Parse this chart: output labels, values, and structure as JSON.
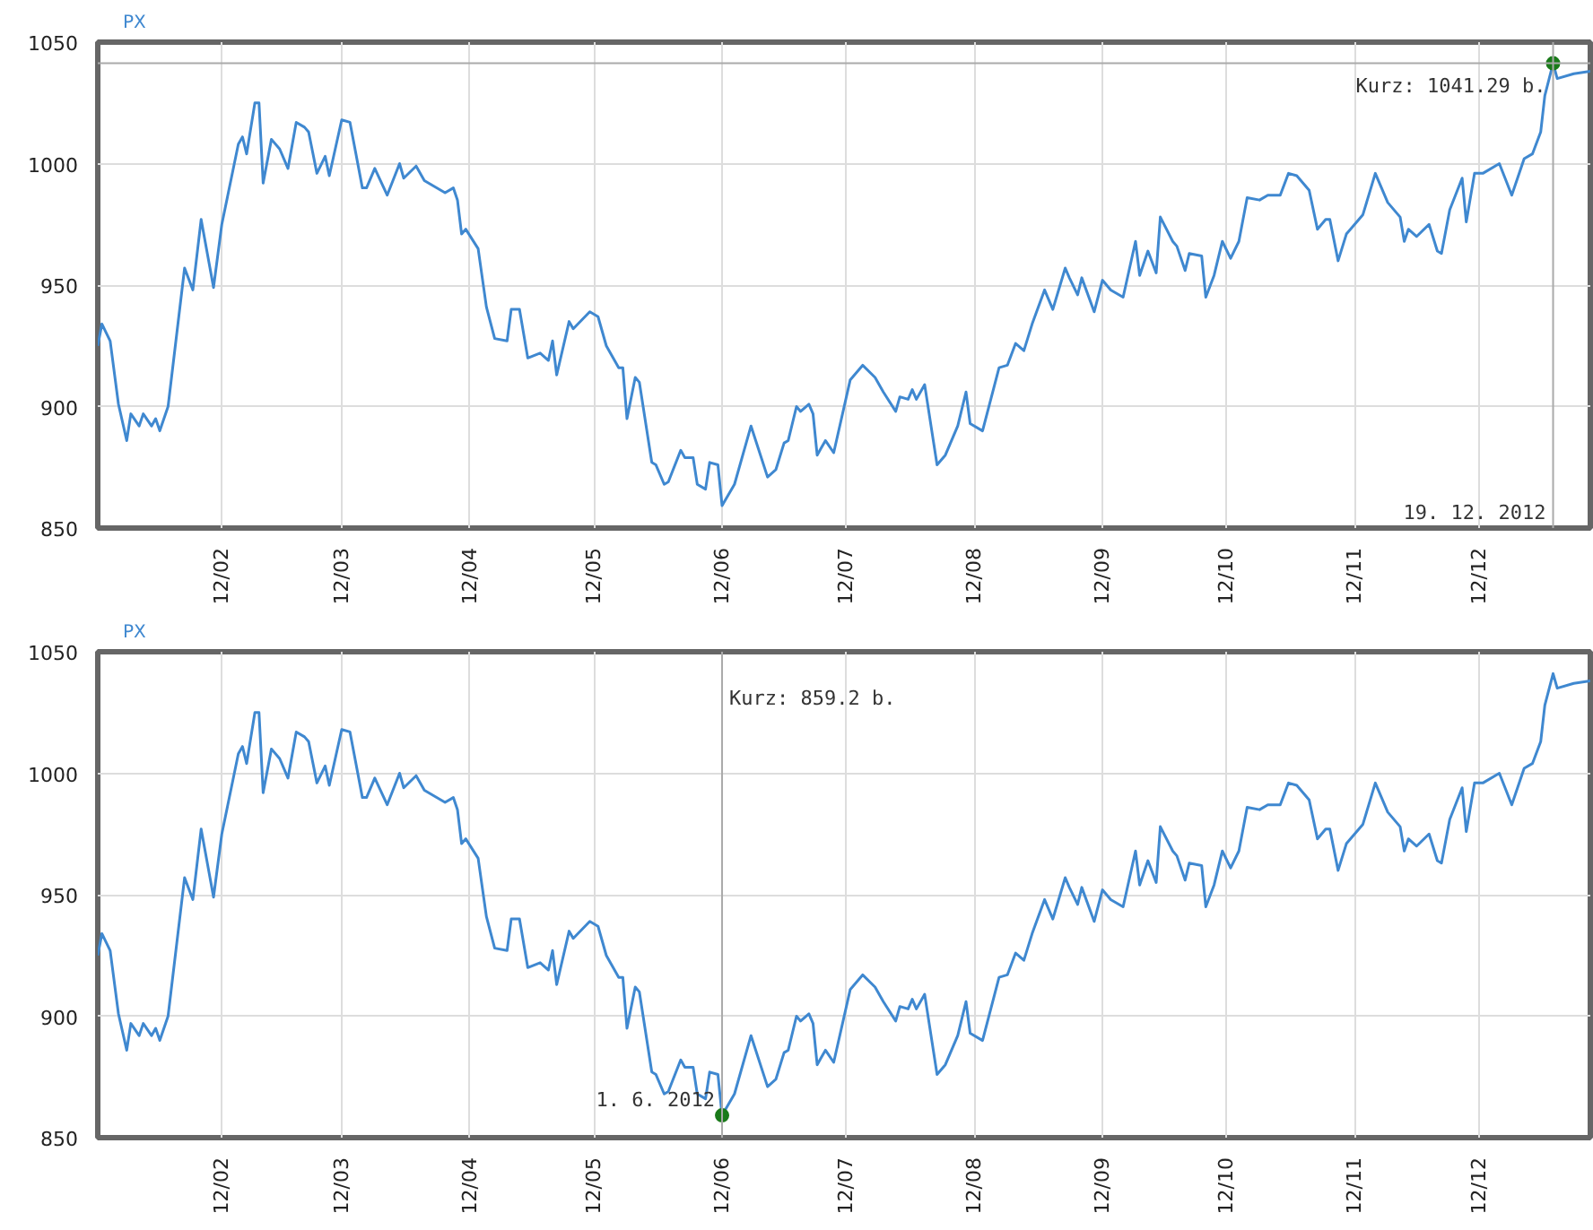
{
  "chart_data": [
    {
      "type": "line",
      "title": "PX",
      "x": [
        "2012-01-02",
        "2012-01-03",
        "2012-01-05",
        "2012-01-07",
        "2012-01-09",
        "2012-01-10",
        "2012-01-12",
        "2012-01-13",
        "2012-01-15",
        "2012-01-16",
        "2012-01-17",
        "2012-01-19",
        "2012-01-23",
        "2012-01-25",
        "2012-01-27",
        "2012-01-30",
        "2012-02-01",
        "2012-02-05",
        "2012-02-06",
        "2012-02-07",
        "2012-02-09",
        "2012-02-10",
        "2012-02-11",
        "2012-02-13",
        "2012-02-15",
        "2012-02-17",
        "2012-02-19",
        "2012-02-21",
        "2012-02-22",
        "2012-02-24",
        "2012-02-26",
        "2012-02-27",
        "2012-03-01",
        "2012-03-03",
        "2012-03-06",
        "2012-03-07",
        "2012-03-09",
        "2012-03-12",
        "2012-03-15",
        "2012-03-16",
        "2012-03-19",
        "2012-03-21",
        "2012-03-26",
        "2012-03-28",
        "2012-03-29",
        "2012-03-30",
        "2012-03-31",
        "2012-04-03",
        "2012-04-05",
        "2012-04-07",
        "2012-04-10",
        "2012-04-11",
        "2012-04-13",
        "2012-04-15",
        "2012-04-18",
        "2012-04-20",
        "2012-04-21",
        "2012-04-22",
        "2012-04-25",
        "2012-04-26",
        "2012-04-30",
        "2012-05-02",
        "2012-05-04",
        "2012-05-07",
        "2012-05-08",
        "2012-05-09",
        "2012-05-11",
        "2012-05-12",
        "2012-05-15",
        "2012-05-16",
        "2012-05-18",
        "2012-05-19",
        "2012-05-22",
        "2012-05-23",
        "2012-05-25",
        "2012-05-26",
        "2012-05-28",
        "2012-05-29",
        "2012-05-31",
        "2012-06-01",
        "2012-06-04",
        "2012-06-08",
        "2012-06-12",
        "2012-06-14",
        "2012-06-16",
        "2012-06-17",
        "2012-06-19",
        "2012-06-20",
        "2012-06-22",
        "2012-06-23",
        "2012-06-24",
        "2012-06-25",
        "2012-06-26",
        "2012-06-28",
        "2012-07-02",
        "2012-07-05",
        "2012-07-08",
        "2012-07-10",
        "2012-07-13",
        "2012-07-14",
        "2012-07-16",
        "2012-07-17",
        "2012-07-18",
        "2012-07-20",
        "2012-07-23",
        "2012-07-25",
        "2012-07-28",
        "2012-07-30",
        "2012-07-31",
        "2012-08-03",
        "2012-08-07",
        "2012-08-09",
        "2012-08-11",
        "2012-08-13",
        "2012-08-15",
        "2012-08-18",
        "2012-08-20",
        "2012-08-23",
        "2012-08-24",
        "2012-08-26",
        "2012-08-27",
        "2012-08-30",
        "2012-09-01",
        "2012-09-03",
        "2012-09-06",
        "2012-09-09",
        "2012-09-10",
        "2012-09-12",
        "2012-09-14",
        "2012-09-15",
        "2012-09-18",
        "2012-09-19",
        "2012-09-21",
        "2012-09-22",
        "2012-09-25",
        "2012-09-26",
        "2012-09-28",
        "2012-09-30",
        "2012-10-02",
        "2012-10-04",
        "2012-10-06",
        "2012-10-09",
        "2012-10-11",
        "2012-10-14",
        "2012-10-16",
        "2012-10-18",
        "2012-10-21",
        "2012-10-23",
        "2012-10-25",
        "2012-10-26",
        "2012-10-28",
        "2012-10-30",
        "2012-11-03",
        "2012-11-06",
        "2012-11-09",
        "2012-11-12",
        "2012-11-13",
        "2012-11-14",
        "2012-11-16",
        "2012-11-19",
        "2012-11-21",
        "2012-11-22",
        "2012-11-24",
        "2012-11-27",
        "2012-11-28",
        "2012-11-30",
        "2012-12-02",
        "2012-12-06",
        "2012-12-09",
        "2012-12-12",
        "2012-12-14",
        "2012-12-16",
        "2012-12-17",
        "2012-12-19",
        "2012-12-20",
        "2012-12-24",
        "2012-12-28"
      ],
      "series": [
        {
          "color": "#3f88d0",
          "values": [
            925,
            934,
            927,
            901,
            886,
            897,
            892,
            897,
            892,
            895,
            890,
            900,
            957,
            948,
            977,
            949,
            975,
            1008,
            1011,
            1004,
            1025,
            1025,
            992,
            1010,
            1006,
            998,
            1017,
            1015,
            1013,
            996,
            1003,
            995,
            1018,
            1017,
            990,
            990,
            998,
            987,
            1000,
            994,
            999,
            993,
            988,
            990,
            985,
            971,
            973,
            965,
            941,
            928,
            927,
            940,
            940,
            920,
            922,
            919,
            927,
            913,
            935,
            932,
            939,
            937,
            925,
            916,
            916,
            895,
            912,
            910,
            877,
            876,
            868,
            869,
            882,
            879,
            879,
            868,
            866,
            877,
            876,
            859.2,
            868,
            892,
            871,
            874,
            885,
            886,
            900,
            898,
            901,
            897,
            880,
            883,
            886,
            881,
            911,
            917,
            912,
            906,
            898,
            904,
            903,
            907,
            903,
            909,
            876,
            880,
            892,
            906,
            893,
            890,
            916,
            917,
            926,
            923,
            934,
            948,
            940,
            957,
            953,
            946,
            953,
            939,
            952,
            948,
            945,
            968,
            954,
            964,
            955,
            978,
            968,
            966,
            956,
            963,
            962,
            945,
            954,
            968,
            961,
            968,
            986,
            985,
            987,
            987,
            996,
            995,
            989,
            973,
            977,
            977,
            960,
            971,
            979,
            996,
            984,
            978,
            968,
            973,
            970,
            975,
            964,
            963,
            981,
            994,
            976,
            996,
            996,
            1000,
            987,
            1002,
            1004,
            1013,
            1028,
            1041.29,
            1035,
            1037,
            1038
          ]
        },
        {
          "type": "scatter",
          "color": "#1a7a1a",
          "x": [
            "2012-12-19"
          ],
          "values": [
            1041.29
          ]
        }
      ],
      "xlim": [
        "2012-01-02",
        "2012-12-28"
      ],
      "ylim": [
        850,
        1050
      ],
      "xticks": [
        {
          "value": "2012-02-01",
          "label": "12/02"
        },
        {
          "value": "2012-03-01",
          "label": "12/03"
        },
        {
          "value": "2012-04-01",
          "label": "12/04"
        },
        {
          "value": "2012-05-01",
          "label": "12/05"
        },
        {
          "value": "2012-06-01",
          "label": "12/06"
        },
        {
          "value": "2012-07-01",
          "label": "12/07"
        },
        {
          "value": "2012-08-01",
          "label": "12/08"
        },
        {
          "value": "2012-09-01",
          "label": "12/09"
        },
        {
          "value": "2012-10-01",
          "label": "12/10"
        },
        {
          "value": "2012-11-01",
          "label": "12/11"
        },
        {
          "value": "2012-12-01",
          "label": "12/12"
        }
      ],
      "yticks": [
        850,
        900,
        950,
        1000,
        1050
      ],
      "grid": true,
      "ref_lines": [
        {
          "axis": "x",
          "value": "2012-12-19",
          "color": "#aaaaaa"
        },
        {
          "axis": "y",
          "value": 1041.29,
          "color": "#aaaaaa"
        }
      ],
      "annotations": [
        {
          "text": "Kurz: 1041.29 b.",
          "x": "2012-12-19",
          "y": 1041.29
        },
        {
          "text": "19. 12. 2012",
          "x": "2012-12-19",
          "y": 850
        }
      ]
    },
    {
      "type": "line",
      "title": "PX",
      "x": [
        "2012-01-02",
        "2012-01-03",
        "2012-01-05",
        "2012-01-07",
        "2012-01-09",
        "2012-01-10",
        "2012-01-12",
        "2012-01-13",
        "2012-01-15",
        "2012-01-16",
        "2012-01-17",
        "2012-01-19",
        "2012-01-23",
        "2012-01-25",
        "2012-01-27",
        "2012-01-30",
        "2012-02-01",
        "2012-02-05",
        "2012-02-06",
        "2012-02-07",
        "2012-02-09",
        "2012-02-10",
        "2012-02-11",
        "2012-02-13",
        "2012-02-15",
        "2012-02-17",
        "2012-02-19",
        "2012-02-21",
        "2012-02-22",
        "2012-02-24",
        "2012-02-26",
        "2012-02-27",
        "2012-03-01",
        "2012-03-03",
        "2012-03-06",
        "2012-03-07",
        "2012-03-09",
        "2012-03-12",
        "2012-03-15",
        "2012-03-16",
        "2012-03-19",
        "2012-03-21",
        "2012-03-26",
        "2012-03-28",
        "2012-03-29",
        "2012-03-30",
        "2012-03-31",
        "2012-04-03",
        "2012-04-05",
        "2012-04-07",
        "2012-04-10",
        "2012-04-11",
        "2012-04-13",
        "2012-04-15",
        "2012-04-18",
        "2012-04-20",
        "2012-04-21",
        "2012-04-22",
        "2012-04-25",
        "2012-04-26",
        "2012-04-30",
        "2012-05-02",
        "2012-05-04",
        "2012-05-07",
        "2012-05-08",
        "2012-05-09",
        "2012-05-11",
        "2012-05-12",
        "2012-05-15",
        "2012-05-16",
        "2012-05-18",
        "2012-05-19",
        "2012-05-22",
        "2012-05-23",
        "2012-05-25",
        "2012-05-26",
        "2012-05-28",
        "2012-05-29",
        "2012-05-31",
        "2012-06-01",
        "2012-06-04",
        "2012-06-08",
        "2012-06-12",
        "2012-06-14",
        "2012-06-16",
        "2012-06-17",
        "2012-06-19",
        "2012-06-20",
        "2012-06-22",
        "2012-06-23",
        "2012-06-24",
        "2012-06-25",
        "2012-06-26",
        "2012-06-28",
        "2012-07-02",
        "2012-07-05",
        "2012-07-08",
        "2012-07-10",
        "2012-07-13",
        "2012-07-14",
        "2012-07-16",
        "2012-07-17",
        "2012-07-18",
        "2012-07-20",
        "2012-07-23",
        "2012-07-25",
        "2012-07-28",
        "2012-07-30",
        "2012-07-31",
        "2012-08-03",
        "2012-08-07",
        "2012-08-09",
        "2012-08-11",
        "2012-08-13",
        "2012-08-15",
        "2012-08-18",
        "2012-08-20",
        "2012-08-23",
        "2012-08-24",
        "2012-08-26",
        "2012-08-27",
        "2012-08-30",
        "2012-09-01",
        "2012-09-03",
        "2012-09-06",
        "2012-09-09",
        "2012-09-10",
        "2012-09-12",
        "2012-09-14",
        "2012-09-15",
        "2012-09-18",
        "2012-09-19",
        "2012-09-21",
        "2012-09-22",
        "2012-09-25",
        "2012-09-26",
        "2012-09-28",
        "2012-09-30",
        "2012-10-02",
        "2012-10-04",
        "2012-10-06",
        "2012-10-09",
        "2012-10-11",
        "2012-10-14",
        "2012-10-16",
        "2012-10-18",
        "2012-10-21",
        "2012-10-23",
        "2012-10-25",
        "2012-10-26",
        "2012-10-28",
        "2012-10-30",
        "2012-11-03",
        "2012-11-06",
        "2012-11-09",
        "2012-11-12",
        "2012-11-13",
        "2012-11-14",
        "2012-11-16",
        "2012-11-19",
        "2012-11-21",
        "2012-11-22",
        "2012-11-24",
        "2012-11-27",
        "2012-11-28",
        "2012-11-30",
        "2012-12-02",
        "2012-12-06",
        "2012-12-09",
        "2012-12-12",
        "2012-12-14",
        "2012-12-16",
        "2012-12-17",
        "2012-12-19",
        "2012-12-20",
        "2012-12-24",
        "2012-12-28"
      ],
      "series": [
        {
          "color": "#3f88d0",
          "values": [
            925,
            934,
            927,
            901,
            886,
            897,
            892,
            897,
            892,
            895,
            890,
            900,
            957,
            948,
            977,
            949,
            975,
            1008,
            1011,
            1004,
            1025,
            1025,
            992,
            1010,
            1006,
            998,
            1017,
            1015,
            1013,
            996,
            1003,
            995,
            1018,
            1017,
            990,
            990,
            998,
            987,
            1000,
            994,
            999,
            993,
            988,
            990,
            985,
            971,
            973,
            965,
            941,
            928,
            927,
            940,
            940,
            920,
            922,
            919,
            927,
            913,
            935,
            932,
            939,
            937,
            925,
            916,
            916,
            895,
            912,
            910,
            877,
            876,
            868,
            869,
            882,
            879,
            879,
            868,
            866,
            877,
            876,
            859.2,
            868,
            892,
            871,
            874,
            885,
            886,
            900,
            898,
            901,
            897,
            880,
            883,
            886,
            881,
            911,
            917,
            912,
            906,
            898,
            904,
            903,
            907,
            903,
            909,
            876,
            880,
            892,
            906,
            893,
            890,
            916,
            917,
            926,
            923,
            934,
            948,
            940,
            957,
            953,
            946,
            953,
            939,
            952,
            948,
            945,
            968,
            954,
            964,
            955,
            978,
            968,
            966,
            956,
            963,
            962,
            945,
            954,
            968,
            961,
            968,
            986,
            985,
            987,
            987,
            996,
            995,
            989,
            973,
            977,
            977,
            960,
            971,
            979,
            996,
            984,
            978,
            968,
            973,
            970,
            975,
            964,
            963,
            981,
            994,
            976,
            996,
            996,
            1000,
            987,
            1002,
            1004,
            1013,
            1028,
            1041,
            1035,
            1037,
            1038
          ]
        },
        {
          "type": "scatter",
          "color": "#1a7a1a",
          "x": [
            "2012-06-01"
          ],
          "values": [
            859.2
          ]
        }
      ],
      "xlim": [
        "2012-01-02",
        "2012-12-28"
      ],
      "ylim": [
        850,
        1050
      ],
      "xticks": [
        {
          "value": "2012-02-01",
          "label": "12/02"
        },
        {
          "value": "2012-03-01",
          "label": "12/03"
        },
        {
          "value": "2012-04-01",
          "label": "12/04"
        },
        {
          "value": "2012-05-01",
          "label": "12/05"
        },
        {
          "value": "2012-06-01",
          "label": "12/06"
        },
        {
          "value": "2012-07-01",
          "label": "12/07"
        },
        {
          "value": "2012-08-01",
          "label": "12/08"
        },
        {
          "value": "2012-09-01",
          "label": "12/09"
        },
        {
          "value": "2012-10-01",
          "label": "12/10"
        },
        {
          "value": "2012-11-01",
          "label": "12/11"
        },
        {
          "value": "2012-12-01",
          "label": "12/12"
        }
      ],
      "yticks": [
        850,
        900,
        950,
        1000,
        1050
      ],
      "grid": true,
      "ref_lines": [
        {
          "axis": "x",
          "value": "2012-06-01",
          "color": "#aaaaaa"
        }
      ],
      "annotations": [
        {
          "text": "Kurz: 859.2 b.",
          "x": "2012-06-01",
          "y": 1040
        },
        {
          "text": "1. 6. 2012",
          "x": "2012-06-01",
          "y": 859.2
        }
      ]
    }
  ]
}
